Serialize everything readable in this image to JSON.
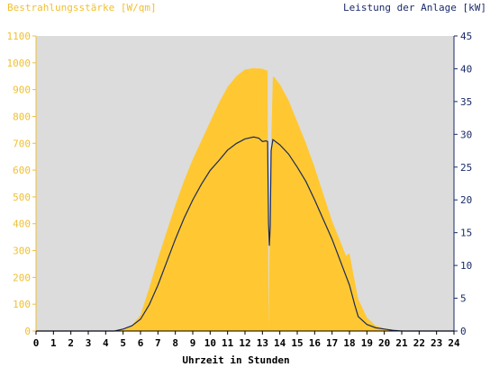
{
  "chart_data": {
    "type": "area",
    "left_axis_title": "Bestrahlungsstärke [W/qm]",
    "right_axis_title": "Leistung der Anlage [kW]",
    "xlabel": "Uhrzeit in Stunden",
    "x_ticks": [
      "0",
      "1",
      "2",
      "3",
      "4",
      "5",
      "6",
      "7",
      "8",
      "9",
      "10",
      "11",
      "12",
      "13",
      "14",
      "15",
      "16",
      "17",
      "18",
      "19",
      "20",
      "21",
      "22",
      "23",
      "24"
    ],
    "y_left_ticks": [
      "0",
      "100",
      "200",
      "300",
      "400",
      "500",
      "600",
      "700",
      "800",
      "900",
      "1000",
      "1100"
    ],
    "y_right_ticks": [
      "0",
      "5",
      "10",
      "15",
      "20",
      "25",
      "30",
      "35",
      "40",
      "45"
    ],
    "xlim": [
      0,
      24
    ],
    "ylim_left": [
      0,
      1100
    ],
    "ylim_right": [
      0,
      45
    ],
    "grid": false,
    "colors": {
      "background": "#dcdcdc",
      "irradiance": "#ffc832",
      "power": "#1a2a5a",
      "left_axis": "#f0c030",
      "right_axis": "#1a2a6a",
      "x_axis": "#000000"
    },
    "series": [
      {
        "name": "Bestrahlungsstärke [W/qm]",
        "axis": "left",
        "type": "area",
        "x": [
          4.5,
          5.0,
          5.5,
          6.0,
          6.5,
          7.0,
          7.5,
          8.0,
          8.5,
          9.0,
          9.5,
          10.0,
          10.5,
          11.0,
          11.5,
          12.0,
          12.5,
          13.0,
          13.1,
          13.3,
          13.35,
          13.5,
          13.6,
          13.7,
          14.0,
          14.5,
          15.0,
          15.5,
          16.0,
          16.5,
          17.0,
          17.5,
          17.8,
          18.0,
          18.2,
          18.5,
          19.0,
          19.5,
          20.0,
          20.5,
          21.0
        ],
        "values": [
          0,
          5,
          20,
          60,
          160,
          270,
          370,
          470,
          560,
          640,
          710,
          780,
          850,
          910,
          950,
          975,
          980,
          978,
          975,
          970,
          20,
          690,
          950,
          945,
          920,
          860,
          780,
          700,
          610,
          510,
          410,
          330,
          280,
          290,
          220,
          120,
          50,
          20,
          10,
          3,
          0
        ]
      },
      {
        "name": "Leistung der Anlage [kW]",
        "axis": "right",
        "type": "line",
        "x": [
          0,
          4.5,
          5.0,
          5.5,
          6.0,
          6.5,
          7.0,
          7.5,
          8.0,
          8.5,
          9.0,
          9.5,
          10.0,
          10.5,
          11.0,
          11.5,
          12.0,
          12.5,
          12.8,
          13.0,
          13.2,
          13.3,
          13.35,
          13.4,
          13.45,
          13.5,
          13.6,
          14.0,
          14.5,
          15.0,
          15.5,
          16.0,
          16.5,
          17.0,
          17.5,
          18.0,
          18.3,
          18.5,
          19.0,
          19.5,
          20.0,
          20.5,
          21.0,
          24.0
        ],
        "values": [
          0,
          0,
          0.3,
          0.8,
          1.8,
          4.0,
          7.0,
          10.5,
          14.0,
          17.2,
          20.0,
          22.4,
          24.5,
          26.0,
          27.6,
          28.6,
          29.3,
          29.6,
          29.4,
          28.9,
          29.0,
          28.9,
          16.5,
          13.0,
          16.0,
          27.5,
          29.2,
          28.4,
          27.0,
          25.0,
          22.8,
          20.0,
          17.0,
          14.0,
          10.5,
          7.0,
          4.0,
          2.2,
          1.0,
          0.5,
          0.3,
          0.1,
          0,
          0
        ]
      }
    ]
  }
}
